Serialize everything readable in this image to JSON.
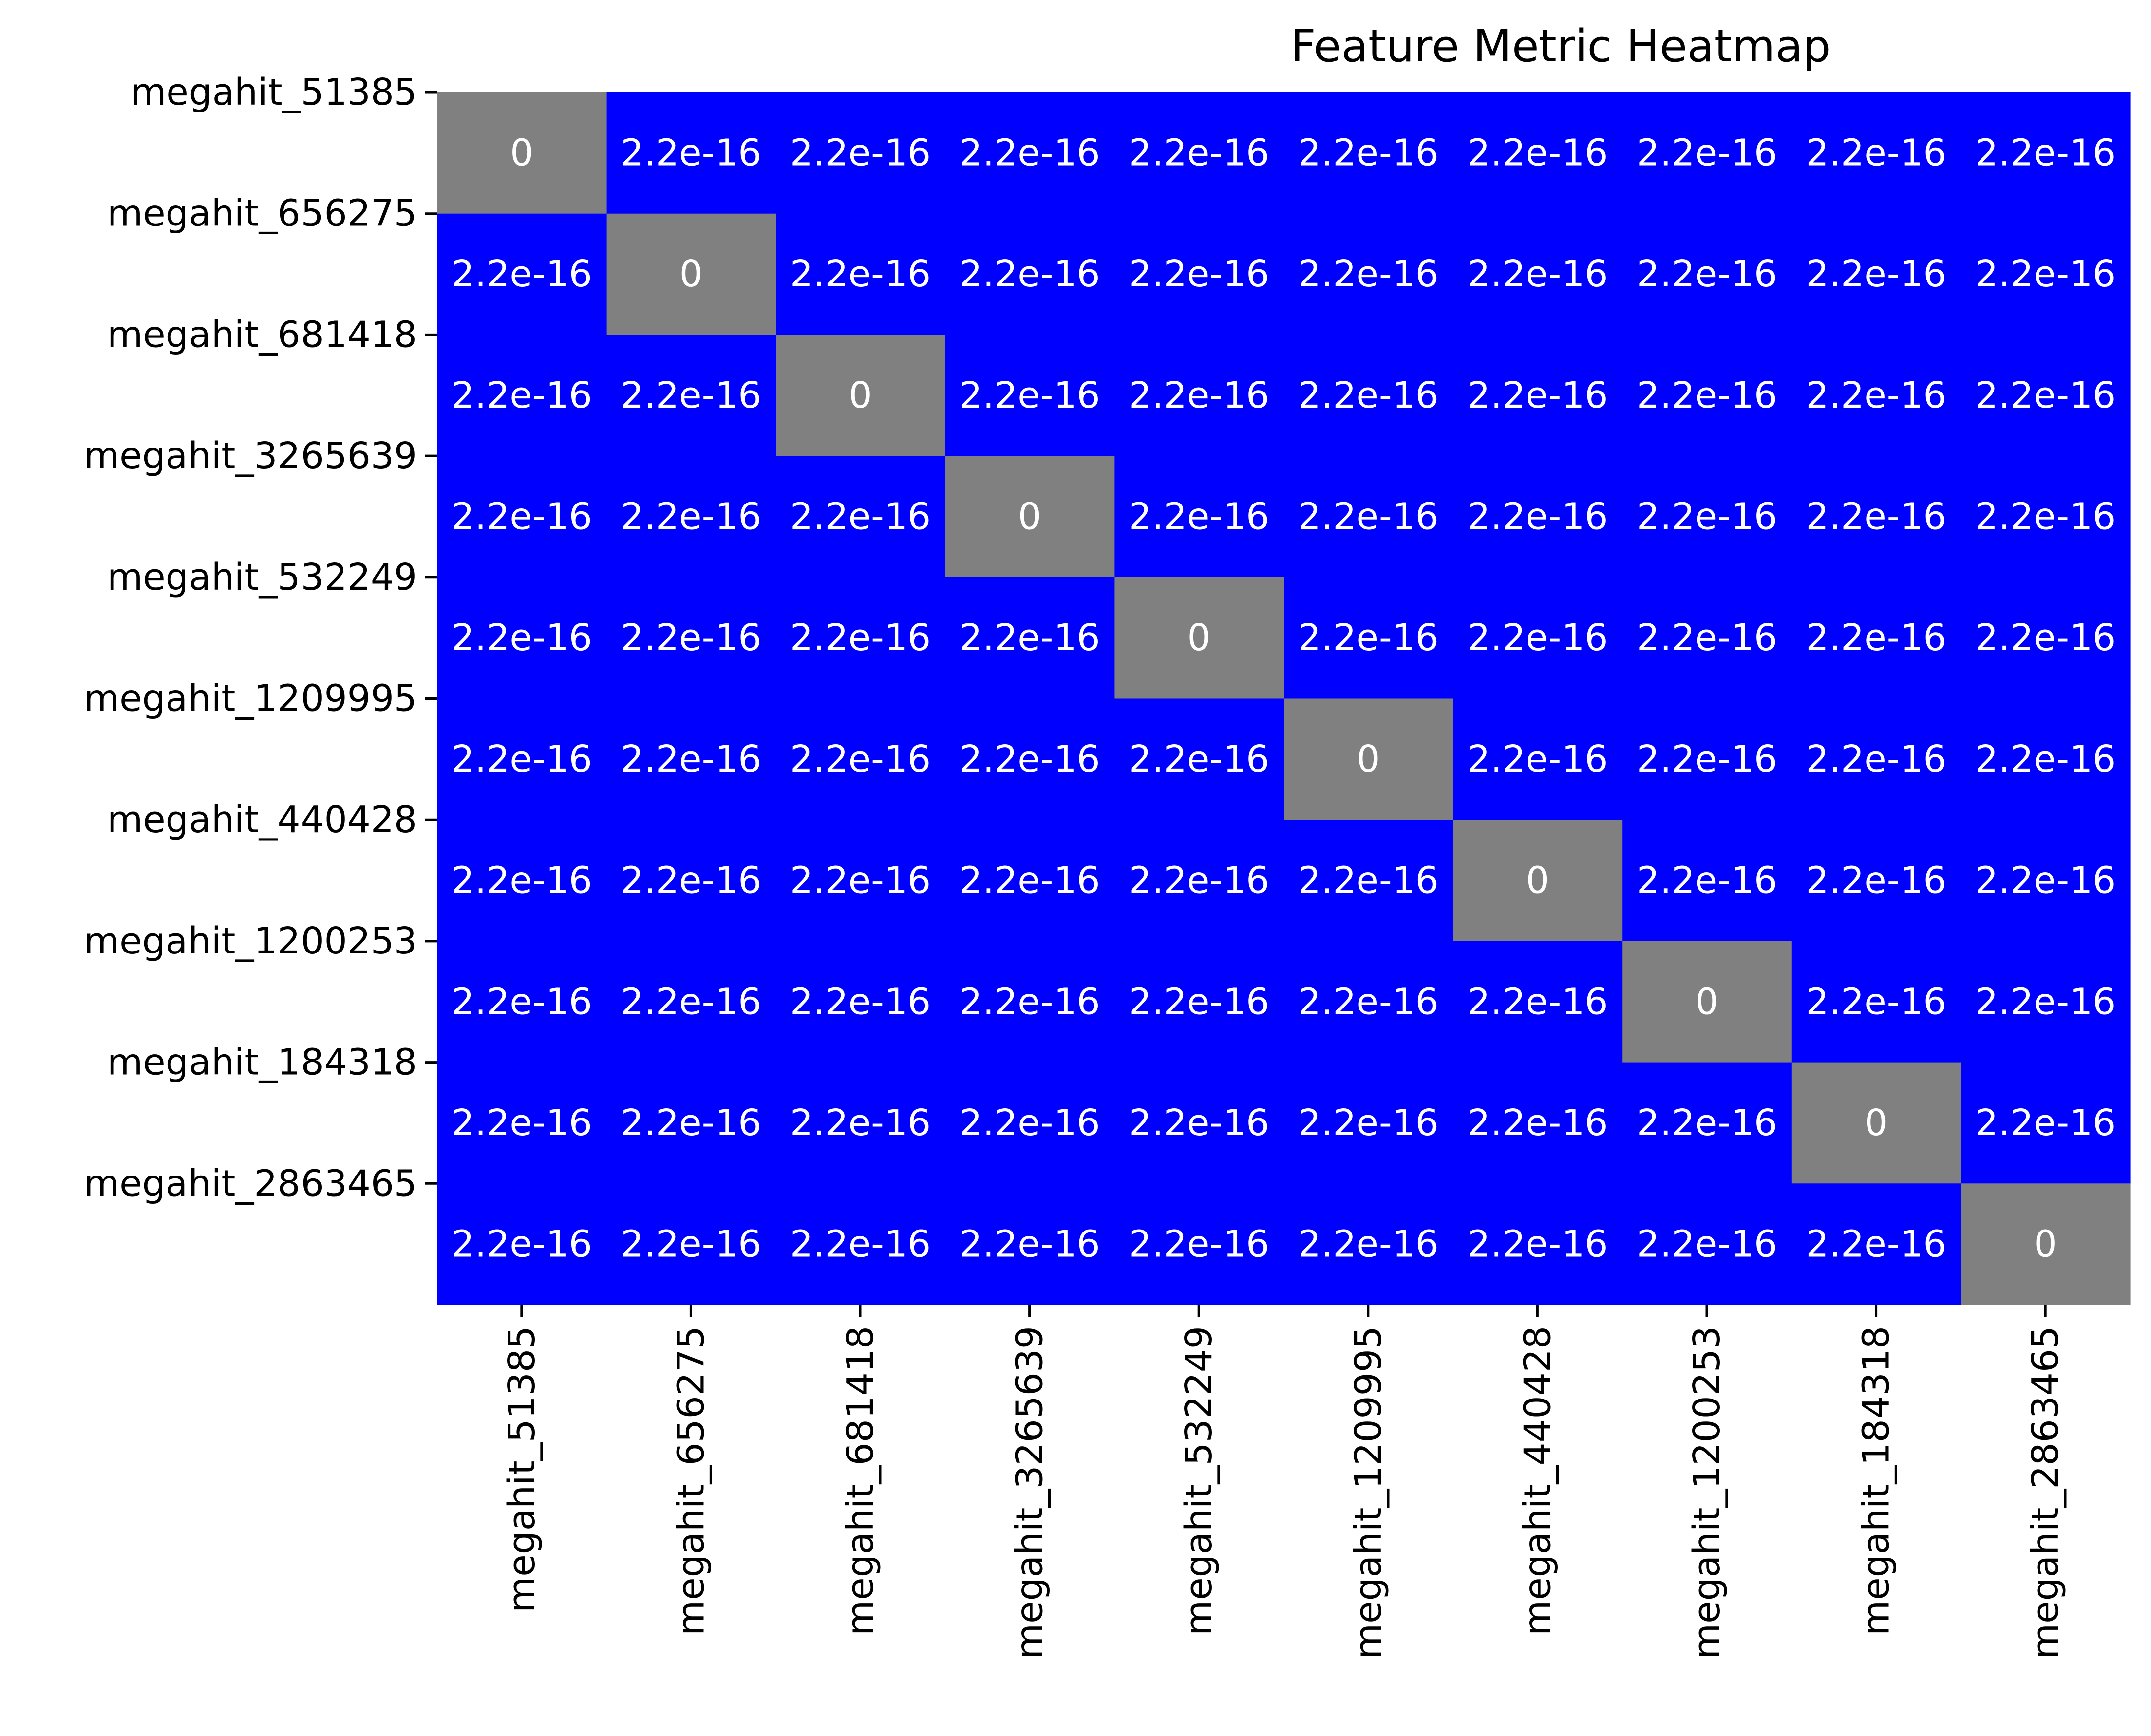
{
  "chart_data": {
    "type": "heatmap",
    "title": "Feature Metric Heatmap",
    "xlabel": "",
    "ylabel": "",
    "grid": false,
    "legend": "none",
    "rows": [
      "megahit_51385",
      "megahit_656275",
      "megahit_681418",
      "megahit_3265639",
      "megahit_532249",
      "megahit_1209995",
      "megahit_440428",
      "megahit_1200253",
      "megahit_184318",
      "megahit_2863465"
    ],
    "columns": [
      "megahit_51385",
      "megahit_656275",
      "megahit_681418",
      "megahit_3265639",
      "megahit_532249",
      "megahit_1209995",
      "megahit_440428",
      "megahit_1200253",
      "megahit_184318",
      "megahit_2863465"
    ],
    "values": [
      [
        0,
        2.2e-16,
        2.2e-16,
        2.2e-16,
        2.2e-16,
        2.2e-16,
        2.2e-16,
        2.2e-16,
        2.2e-16,
        2.2e-16
      ],
      [
        2.2e-16,
        0,
        2.2e-16,
        2.2e-16,
        2.2e-16,
        2.2e-16,
        2.2e-16,
        2.2e-16,
        2.2e-16,
        2.2e-16
      ],
      [
        2.2e-16,
        2.2e-16,
        0,
        2.2e-16,
        2.2e-16,
        2.2e-16,
        2.2e-16,
        2.2e-16,
        2.2e-16,
        2.2e-16
      ],
      [
        2.2e-16,
        2.2e-16,
        2.2e-16,
        0,
        2.2e-16,
        2.2e-16,
        2.2e-16,
        2.2e-16,
        2.2e-16,
        2.2e-16
      ],
      [
        2.2e-16,
        2.2e-16,
        2.2e-16,
        2.2e-16,
        0,
        2.2e-16,
        2.2e-16,
        2.2e-16,
        2.2e-16,
        2.2e-16
      ],
      [
        2.2e-16,
        2.2e-16,
        2.2e-16,
        2.2e-16,
        2.2e-16,
        0,
        2.2e-16,
        2.2e-16,
        2.2e-16,
        2.2e-16
      ],
      [
        2.2e-16,
        2.2e-16,
        2.2e-16,
        2.2e-16,
        2.2e-16,
        2.2e-16,
        0,
        2.2e-16,
        2.2e-16,
        2.2e-16
      ],
      [
        2.2e-16,
        2.2e-16,
        2.2e-16,
        2.2e-16,
        2.2e-16,
        2.2e-16,
        2.2e-16,
        0,
        2.2e-16,
        2.2e-16
      ],
      [
        2.2e-16,
        2.2e-16,
        2.2e-16,
        2.2e-16,
        2.2e-16,
        2.2e-16,
        2.2e-16,
        2.2e-16,
        0,
        2.2e-16
      ],
      [
        2.2e-16,
        2.2e-16,
        2.2e-16,
        2.2e-16,
        2.2e-16,
        2.2e-16,
        2.2e-16,
        2.2e-16,
        2.2e-16,
        0
      ]
    ],
    "value_labels": [
      [
        "0",
        "2.2e-16",
        "2.2e-16",
        "2.2e-16",
        "2.2e-16",
        "2.2e-16",
        "2.2e-16",
        "2.2e-16",
        "2.2e-16",
        "2.2e-16"
      ],
      [
        "2.2e-16",
        "0",
        "2.2e-16",
        "2.2e-16",
        "2.2e-16",
        "2.2e-16",
        "2.2e-16",
        "2.2e-16",
        "2.2e-16",
        "2.2e-16"
      ],
      [
        "2.2e-16",
        "2.2e-16",
        "0",
        "2.2e-16",
        "2.2e-16",
        "2.2e-16",
        "2.2e-16",
        "2.2e-16",
        "2.2e-16",
        "2.2e-16"
      ],
      [
        "2.2e-16",
        "2.2e-16",
        "2.2e-16",
        "0",
        "2.2e-16",
        "2.2e-16",
        "2.2e-16",
        "2.2e-16",
        "2.2e-16",
        "2.2e-16"
      ],
      [
        "2.2e-16",
        "2.2e-16",
        "2.2e-16",
        "2.2e-16",
        "0",
        "2.2e-16",
        "2.2e-16",
        "2.2e-16",
        "2.2e-16",
        "2.2e-16"
      ],
      [
        "2.2e-16",
        "2.2e-16",
        "2.2e-16",
        "2.2e-16",
        "2.2e-16",
        "0",
        "2.2e-16",
        "2.2e-16",
        "2.2e-16",
        "2.2e-16"
      ],
      [
        "2.2e-16",
        "2.2e-16",
        "2.2e-16",
        "2.2e-16",
        "2.2e-16",
        "2.2e-16",
        "0",
        "2.2e-16",
        "2.2e-16",
        "2.2e-16"
      ],
      [
        "2.2e-16",
        "2.2e-16",
        "2.2e-16",
        "2.2e-16",
        "2.2e-16",
        "2.2e-16",
        "2.2e-16",
        "0",
        "2.2e-16",
        "2.2e-16"
      ],
      [
        "2.2e-16",
        "2.2e-16",
        "2.2e-16",
        "2.2e-16",
        "2.2e-16",
        "2.2e-16",
        "2.2e-16",
        "2.2e-16",
        "0",
        "2.2e-16"
      ],
      [
        "2.2e-16",
        "2.2e-16",
        "2.2e-16",
        "2.2e-16",
        "2.2e-16",
        "2.2e-16",
        "2.2e-16",
        "2.2e-16",
        "2.2e-16",
        "0"
      ]
    ],
    "colors": {
      "nonzero": "#0000ff",
      "zero": "#808080",
      "cell_text": "#ffffff"
    },
    "colorbar": false
  }
}
